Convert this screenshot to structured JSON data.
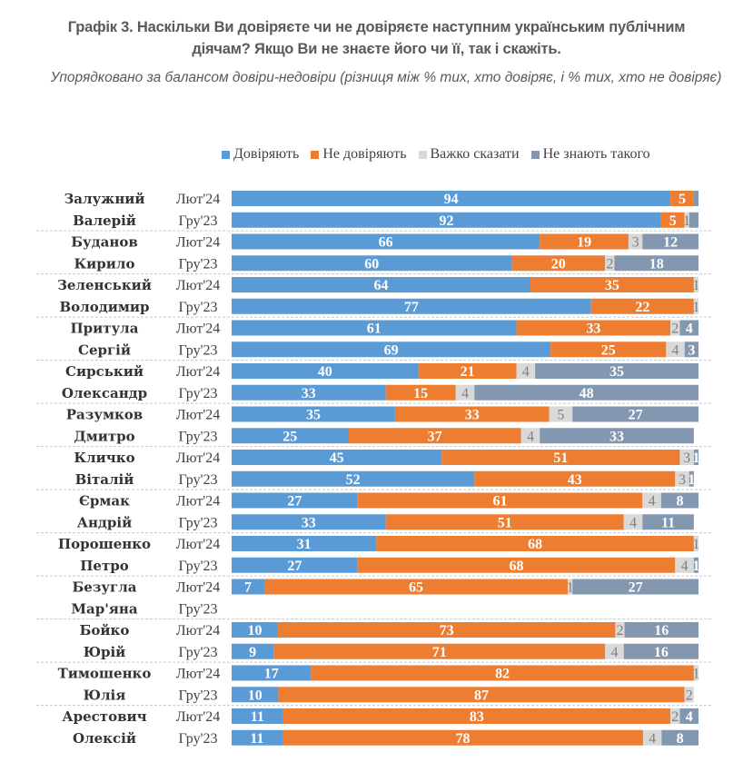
{
  "title_lines": [
    "Графік 3. Наскільки Ви довіряєте чи не довіряєте наступним українським публічним",
    "діячам? Якщо Ви не знаєте його чи її, так і скажіть."
  ],
  "subtitle": "Упорядковано за балансом довіри-недовіри (різниця між % тих, хто довіряє, і % тих, хто не довіряє)",
  "chart_data": {
    "type": "bar",
    "orientation": "horizontal",
    "stacked": true,
    "title": "Графік 3. Наскільки Ви довіряєте чи не довіряєте наступним українським публічним діячам? Якщо Ви не знаєте його чи її, так і скажіть.",
    "subtitle": "Упорядковано за балансом довіри-недовіри (різниця між % тих, хто довіряє, і % тих, хто не довіряє)",
    "unit": "%",
    "xlim": [
      0,
      100
    ],
    "legend_position": "top-right",
    "grid": false,
    "periods": [
      "Лют'24",
      "Гру'23"
    ],
    "series": [
      {
        "key": "trust",
        "name": "Довіряють",
        "color": "#5B9BD5",
        "label_style": "light"
      },
      {
        "key": "distrust",
        "name": "Не довіряють",
        "color": "#ED7D31",
        "label_style": "light"
      },
      {
        "key": "hard",
        "name": "Важко сказати",
        "color": "#D9D9D9",
        "label_style": "dark"
      },
      {
        "key": "unknown",
        "name": "Не знають такого",
        "color": "#8497B0",
        "label_style": "light"
      }
    ],
    "people": [
      {
        "surname": "Залужний",
        "first_name": "Валерій",
        "rows": [
          {
            "period": "Лют'24",
            "values": [
              94,
              5,
              0,
              1
            ],
            "labels": [
              "94",
              "5",
              "",
              ""
            ]
          },
          {
            "period": "Гру'23",
            "values": [
              92,
              5,
              1,
              2
            ],
            "labels": [
              "92",
              "5",
              "1",
              ""
            ]
          }
        ]
      },
      {
        "surname": "Буданов",
        "first_name": "Кирило",
        "rows": [
          {
            "period": "Лют'24",
            "values": [
              66,
              19,
              3,
              12
            ],
            "labels": [
              "66",
              "19",
              "3",
              "12"
            ]
          },
          {
            "period": "Гру'23",
            "values": [
              60,
              20,
              2,
              18
            ],
            "labels": [
              "60",
              "20",
              "2",
              "18"
            ]
          }
        ]
      },
      {
        "surname": "Зеленський",
        "first_name": "Володимир",
        "rows": [
          {
            "period": "Лют'24",
            "values": [
              64,
              35,
              1,
              0
            ],
            "labels": [
              "64",
              "35",
              "1",
              ""
            ]
          },
          {
            "period": "Гру'23",
            "values": [
              77,
              22,
              1,
              0
            ],
            "labels": [
              "77",
              "22",
              "1",
              ""
            ]
          }
        ]
      },
      {
        "surname": "Притула",
        "first_name": "Сергій",
        "rows": [
          {
            "period": "Лют'24",
            "values": [
              61,
              33,
              2,
              4
            ],
            "labels": [
              "61",
              "33",
              "2",
              "4"
            ]
          },
          {
            "period": "Гру'23",
            "values": [
              69,
              25,
              4,
              3
            ],
            "labels": [
              "69",
              "25",
              "4",
              "3"
            ]
          }
        ]
      },
      {
        "surname": "Сирський",
        "first_name": "Олександр",
        "rows": [
          {
            "period": "Лют'24",
            "values": [
              40,
              21,
              4,
              35
            ],
            "labels": [
              "40",
              "21",
              "4",
              "35"
            ]
          },
          {
            "period": "Гру'23",
            "values": [
              33,
              15,
              4,
              48
            ],
            "labels": [
              "33",
              "15",
              "4",
              "48"
            ]
          }
        ]
      },
      {
        "surname": "Разумков",
        "first_name": "Дмитро",
        "rows": [
          {
            "period": "Лют'24",
            "values": [
              35,
              33,
              5,
              27
            ],
            "labels": [
              "35",
              "33",
              "5",
              "27"
            ]
          },
          {
            "period": "Гру'23",
            "values": [
              25,
              37,
              4,
              33
            ],
            "labels": [
              "25",
              "37",
              "4",
              "33"
            ]
          }
        ]
      },
      {
        "surname": "Кличко",
        "first_name": "Віталій",
        "rows": [
          {
            "period": "Лют'24",
            "values": [
              45,
              51,
              3,
              1
            ],
            "labels": [
              "45",
              "51",
              "3",
              "1"
            ]
          },
          {
            "period": "Гру'23",
            "values": [
              52,
              43,
              3,
              1
            ],
            "labels": [
              "52",
              "43",
              "3",
              "1"
            ]
          }
        ]
      },
      {
        "surname": "Єрмак",
        "first_name": "Андрій",
        "rows": [
          {
            "period": "Лют'24",
            "values": [
              27,
              61,
              4,
              8
            ],
            "labels": [
              "27",
              "61",
              "4",
              "8"
            ]
          },
          {
            "period": "Гру'23",
            "values": [
              33,
              51,
              4,
              11
            ],
            "labels": [
              "33",
              "51",
              "4",
              "11"
            ]
          }
        ]
      },
      {
        "surname": "Порошенко",
        "first_name": "Петро",
        "rows": [
          {
            "period": "Лют'24",
            "values": [
              31,
              68,
              1,
              0
            ],
            "labels": [
              "31",
              "68",
              "1",
              ""
            ]
          },
          {
            "period": "Гру'23",
            "values": [
              27,
              68,
              4,
              1
            ],
            "labels": [
              "27",
              "68",
              "4",
              "1"
            ]
          }
        ]
      },
      {
        "surname": "Безугла",
        "first_name": "Мар'яна",
        "rows": [
          {
            "period": "Лют'24",
            "values": [
              7,
              65,
              1,
              27
            ],
            "labels": [
              "7",
              "65",
              "1",
              "27"
            ]
          },
          {
            "period": "Гру'23",
            "values": [
              0,
              0,
              0,
              0
            ],
            "labels": [
              "",
              "",
              "",
              ""
            ]
          }
        ]
      },
      {
        "surname": "Бойко",
        "first_name": "Юрій",
        "rows": [
          {
            "period": "Лют'24",
            "values": [
              10,
              73,
              2,
              16
            ],
            "labels": [
              "10",
              "73",
              "2",
              "16"
            ]
          },
          {
            "period": "Гру'23",
            "values": [
              9,
              71,
              4,
              16
            ],
            "labels": [
              "9",
              "71",
              "4",
              "16"
            ]
          }
        ]
      },
      {
        "surname": "Тимошенко",
        "first_name": "Юлія",
        "rows": [
          {
            "period": "Лют'24",
            "values": [
              17,
              82,
              1,
              0
            ],
            "labels": [
              "17",
              "82",
              "1",
              ""
            ]
          },
          {
            "period": "Гру'23",
            "values": [
              10,
              87,
              2,
              0
            ],
            "labels": [
              "10",
              "87",
              "2",
              ""
            ]
          }
        ]
      },
      {
        "surname": "Арестович",
        "first_name": "Олексій",
        "rows": [
          {
            "period": "Лют'24",
            "values": [
              11,
              83,
              2,
              4
            ],
            "labels": [
              "11",
              "83",
              "2",
              "4"
            ]
          },
          {
            "period": "Гру'23",
            "values": [
              11,
              78,
              4,
              8
            ],
            "labels": [
              "11",
              "78",
              "4",
              "8"
            ]
          }
        ]
      }
    ]
  }
}
